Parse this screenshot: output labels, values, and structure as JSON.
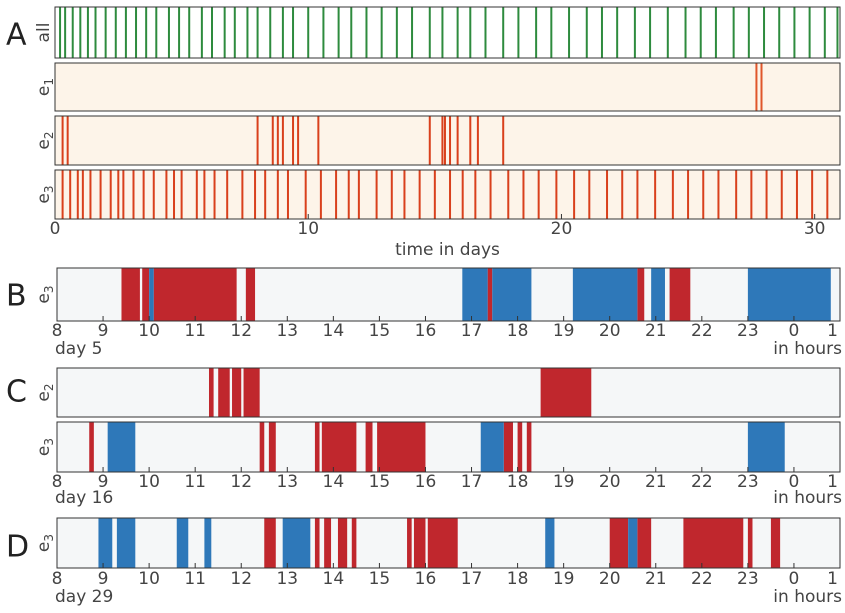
{
  "chart_data": {
    "type": "raster",
    "panels": [
      {
        "label": "A",
        "xlim": [
          0,
          31
        ],
        "xticks": [
          0,
          10,
          20,
          30
        ],
        "xlabel": "time in days",
        "rows": [
          {
            "label": {
              "text": "all"
            },
            "color": "#2e8b3e",
            "background": "#ffffff",
            "events": [
              0.2,
              0.4,
              0.7,
              1.0,
              1.3,
              1.6,
              2.0,
              2.4,
              2.8,
              3.2,
              3.6,
              4.0,
              4.5,
              4.9,
              5.3,
              5.8,
              6.2,
              6.7,
              7.1,
              7.6,
              8.0,
              8.5,
              9.0,
              9.4,
              10.0,
              10.6,
              11.2,
              11.7,
              12.3,
              12.9,
              13.5,
              14.1,
              14.8,
              15.3,
              15.9,
              16.4,
              17.0,
              17.7,
              18.3,
              19.0,
              19.6,
              20.3,
              21.0,
              21.6,
              22.2,
              22.9,
              23.5,
              24.2,
              24.9,
              25.5,
              26.1,
              26.8,
              27.4,
              28.0,
              28.6,
              29.2,
              29.8,
              30.4,
              30.9
            ]
          },
          {
            "label": {
              "text": "e",
              "sub": "1"
            },
            "color": "#e0562b",
            "background": "#fdf4e9",
            "events": [
              27.7,
              27.9
            ]
          },
          {
            "label": {
              "text": "e",
              "sub": "2"
            },
            "color": "#d9401c",
            "background": "#fdf4e9",
            "events": [
              0.3,
              0.5,
              8.0,
              8.6,
              8.8,
              9.0,
              9.4,
              9.6,
              10.4,
              14.8,
              15.3,
              15.4,
              15.6,
              15.9,
              16.4,
              16.7,
              17.7
            ]
          },
          {
            "label": {
              "text": "e",
              "sub": "3"
            },
            "color": "#d9401c",
            "background": "#fdf4e9",
            "events": [
              0.3,
              0.6,
              0.9,
              1.1,
              1.4,
              1.8,
              2.2,
              2.5,
              2.7,
              3.1,
              3.5,
              3.9,
              4.4,
              4.7,
              5.0,
              5.6,
              5.9,
              6.3,
              6.8,
              7.4,
              7.9,
              8.3,
              8.8,
              9.2,
              9.9,
              10.5,
              11.1,
              11.6,
              12.0,
              12.7,
              13.3,
              13.8,
              14.4,
              15.0,
              15.6,
              16.1,
              16.6,
              17.2,
              17.9,
              18.5,
              19.1,
              19.8,
              20.5,
              21.1,
              21.8,
              22.4,
              23.0,
              23.7,
              24.4,
              25.0,
              25.6,
              26.2,
              26.9,
              27.5,
              28.1,
              28.7,
              29.3,
              29.9,
              30.5
            ]
          }
        ]
      },
      {
        "label": "B",
        "xlim": [
          8,
          25
        ],
        "xticks": [
          8,
          9,
          10,
          11,
          12,
          13,
          14,
          15,
          16,
          17,
          18,
          19,
          20,
          21,
          22,
          23,
          {
            "value": 24,
            "label": "0"
          },
          {
            "value": 25,
            "label": "1"
          }
        ],
        "day": "day 5",
        "xlabel": "in hours",
        "colors": {
          "red": "#c0272d",
          "blue": "#2e78b9"
        },
        "rows": [
          {
            "label": {
              "text": "e",
              "sub": "3"
            },
            "red": [
              [
                9.4,
                9.8
              ],
              [
                9.85,
                10.0
              ],
              [
                10.1,
                11.9
              ],
              [
                12.1,
                12.3
              ],
              [
                17.35,
                17.45
              ],
              [
                20.6,
                20.75
              ],
              [
                21.3,
                21.75
              ]
            ],
            "blue": [
              [
                10.0,
                10.1
              ],
              [
                16.8,
                17.35
              ],
              [
                17.45,
                18.3
              ],
              [
                19.2,
                20.6
              ],
              [
                20.9,
                21.2
              ],
              [
                23.0,
                24.8
              ]
            ]
          }
        ]
      },
      {
        "label": "C",
        "xlim": [
          8,
          25
        ],
        "xticks": [
          8,
          9,
          10,
          11,
          12,
          13,
          14,
          15,
          16,
          17,
          18,
          19,
          20,
          21,
          22,
          23,
          {
            "value": 24,
            "label": "0"
          },
          {
            "value": 25,
            "label": "1"
          }
        ],
        "day": "day 16",
        "xlabel": "in hours",
        "colors": {
          "red": "#c0272d",
          "blue": "#2e78b9"
        },
        "rows": [
          {
            "label": {
              "text": "e",
              "sub": "2"
            },
            "red": [
              [
                11.3,
                11.4
              ],
              [
                11.5,
                11.75
              ],
              [
                11.8,
                12.0
              ],
              [
                12.05,
                12.4
              ],
              [
                18.5,
                19.6
              ]
            ],
            "blue": []
          },
          {
            "label": {
              "text": "e",
              "sub": "3"
            },
            "red": [
              [
                8.7,
                8.8
              ],
              [
                12.4,
                12.5
              ],
              [
                12.6,
                12.75
              ],
              [
                13.6,
                13.7
              ],
              [
                13.75,
                14.5
              ],
              [
                14.7,
                14.85
              ],
              [
                14.95,
                16.0
              ],
              [
                17.7,
                17.9
              ],
              [
                18.0,
                18.1
              ],
              [
                18.2,
                18.3
              ]
            ],
            "blue": [
              [
                9.1,
                9.7
              ],
              [
                17.2,
                17.7
              ],
              [
                23.0,
                23.8
              ]
            ]
          }
        ]
      },
      {
        "label": "D",
        "xlim": [
          8,
          25
        ],
        "xticks": [
          8,
          9,
          10,
          11,
          12,
          13,
          14,
          15,
          16,
          17,
          18,
          19,
          20,
          21,
          22,
          23,
          {
            "value": 24,
            "label": "0"
          },
          {
            "value": 25,
            "label": "1"
          }
        ],
        "day": "day 29",
        "xlabel": "in hours",
        "colors": {
          "red": "#c0272d",
          "blue": "#2e78b9"
        },
        "rows": [
          {
            "label": {
              "text": "e",
              "sub": "3"
            },
            "red": [
              [
                12.5,
                12.75
              ],
              [
                13.6,
                13.7
              ],
              [
                13.8,
                13.95
              ],
              [
                14.1,
                14.3
              ],
              [
                14.4,
                14.5
              ],
              [
                15.6,
                15.7
              ],
              [
                15.75,
                16.0
              ],
              [
                16.05,
                16.7
              ],
              [
                20.0,
                20.4
              ],
              [
                20.6,
                20.9
              ],
              [
                21.6,
                22.9
              ],
              [
                23.0,
                23.1
              ],
              [
                23.5,
                23.7
              ]
            ],
            "blue": [
              [
                8.9,
                9.2
              ],
              [
                9.3,
                9.7
              ],
              [
                10.6,
                10.85
              ],
              [
                11.2,
                11.35
              ],
              [
                12.9,
                13.5
              ],
              [
                18.6,
                18.8
              ],
              [
                20.4,
                20.6
              ]
            ]
          }
        ]
      }
    ]
  }
}
